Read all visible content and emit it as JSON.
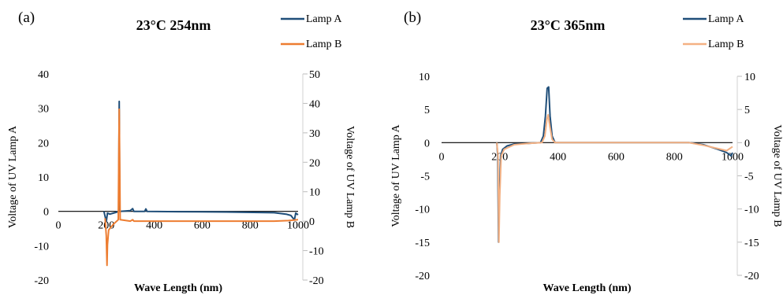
{
  "chart_data": [
    {
      "panel_label": "(a)",
      "type": "line",
      "title": "23°C 254nm",
      "xlabel": "Wave Length (nm)",
      "ylabel_left": "Voltage of UV Lamp A",
      "ylabel_right": "Voltage of UV Lamp B",
      "xlim": [
        0,
        1000
      ],
      "ylim_left": [
        -20,
        40
      ],
      "ylim_right": [
        -20,
        50
      ],
      "x_ticks": [
        "0",
        "200",
        "400",
        "600",
        "800",
        "1000"
      ],
      "y_ticks_left": [
        "40",
        "30",
        "20",
        "10",
        "0",
        "-10",
        "-20"
      ],
      "y_ticks_right": [
        "50",
        "40",
        "30",
        "20",
        "10",
        "0",
        "-10",
        "-20"
      ],
      "legend_position": "top-right",
      "grid": false,
      "series": [
        {
          "name": "Lamp A",
          "axis": "left",
          "color": "#1f4e79",
          "points": [
            [
              190,
              0
            ],
            [
              195,
              -1.5
            ],
            [
              200,
              -3
            ],
            [
              205,
              -0.5
            ],
            [
              215,
              -0.8
            ],
            [
              240,
              -0.3
            ],
            [
              252,
              0
            ],
            [
              253,
              20
            ],
            [
              254,
              32
            ],
            [
              255,
              20
            ],
            [
              256,
              0
            ],
            [
              300,
              0.2
            ],
            [
              310,
              0.8
            ],
            [
              315,
              0
            ],
            [
              360,
              0
            ],
            [
              365,
              0.7
            ],
            [
              370,
              0
            ],
            [
              500,
              -0.1
            ],
            [
              700,
              -0.2
            ],
            [
              900,
              -0.4
            ],
            [
              950,
              -0.8
            ],
            [
              970,
              -1.2
            ],
            [
              985,
              -2.5
            ],
            [
              990,
              -0.5
            ],
            [
              1000,
              -1
            ]
          ]
        },
        {
          "name": "Lamp B",
          "axis": "right",
          "color": "#ed7d31",
          "points": [
            [
              195,
              1
            ],
            [
              200,
              -5
            ],
            [
              203,
              -15
            ],
            [
              205,
              -8
            ],
            [
              210,
              -3
            ],
            [
              230,
              -1
            ],
            [
              250,
              0.5
            ],
            [
              252,
              20
            ],
            [
              254,
              38
            ],
            [
              256,
              20
            ],
            [
              258,
              0.5
            ],
            [
              300,
              0
            ],
            [
              310,
              0.5
            ],
            [
              315,
              0
            ],
            [
              500,
              0
            ],
            [
              700,
              0
            ],
            [
              900,
              0
            ],
            [
              960,
              0.2
            ],
            [
              1000,
              0.5
            ]
          ]
        }
      ]
    },
    {
      "panel_label": "(b)",
      "type": "line",
      "title": "23°C 365nm",
      "xlabel": "Wave Length (nm)",
      "ylabel_left": "Voltage of UV Lamp A",
      "ylabel_right": "Voltage of UV Lamp B",
      "xlim": [
        0,
        1000
      ],
      "ylim_left": [
        -20,
        10
      ],
      "ylim_right": [
        -20,
        10
      ],
      "x_ticks": [
        "0",
        "200",
        "400",
        "600",
        "800",
        "1000"
      ],
      "y_ticks_left": [
        "10",
        "5",
        "0",
        "-5",
        "-10",
        "-15",
        "-20"
      ],
      "y_ticks_right": [
        "10",
        "5",
        "0",
        "-5",
        "-10",
        "-15",
        "-20"
      ],
      "legend_position": "top-right",
      "grid": false,
      "series": [
        {
          "name": "Lamp A",
          "axis": "left",
          "color": "#1f4e79",
          "points": [
            [
              190,
              0
            ],
            [
              193,
              -2
            ],
            [
              196,
              -15
            ],
            [
              199,
              -8
            ],
            [
              203,
              -2
            ],
            [
              210,
              -1
            ],
            [
              225,
              -0.5
            ],
            [
              250,
              -0.2
            ],
            [
              300,
              -0.1
            ],
            [
              340,
              0
            ],
            [
              350,
              1
            ],
            [
              357,
              4
            ],
            [
              363,
              8.2
            ],
            [
              368,
              8.4
            ],
            [
              373,
              4
            ],
            [
              380,
              1
            ],
            [
              390,
              0
            ],
            [
              500,
              0
            ],
            [
              700,
              0
            ],
            [
              850,
              0
            ],
            [
              900,
              -0.3
            ],
            [
              950,
              -1
            ],
            [
              980,
              -1.5
            ],
            [
              995,
              -2
            ],
            [
              1000,
              -1.5
            ]
          ]
        },
        {
          "name": "Lamp B",
          "axis": "right",
          "color": "#f4b183",
          "points": [
            [
              190,
              0
            ],
            [
              194,
              -2
            ],
            [
              197,
              -15
            ],
            [
              200,
              -8
            ],
            [
              205,
              -2
            ],
            [
              215,
              -1
            ],
            [
              250,
              -0.3
            ],
            [
              300,
              -0.1
            ],
            [
              345,
              0
            ],
            [
              355,
              1
            ],
            [
              362,
              3.5
            ],
            [
              366,
              4.2
            ],
            [
              372,
              2.5
            ],
            [
              380,
              0.5
            ],
            [
              390,
              0
            ],
            [
              600,
              0
            ],
            [
              850,
              0
            ],
            [
              900,
              -0.4
            ],
            [
              950,
              -0.9
            ],
            [
              980,
              -1.2
            ],
            [
              1000,
              -0.6
            ]
          ]
        }
      ]
    }
  ]
}
